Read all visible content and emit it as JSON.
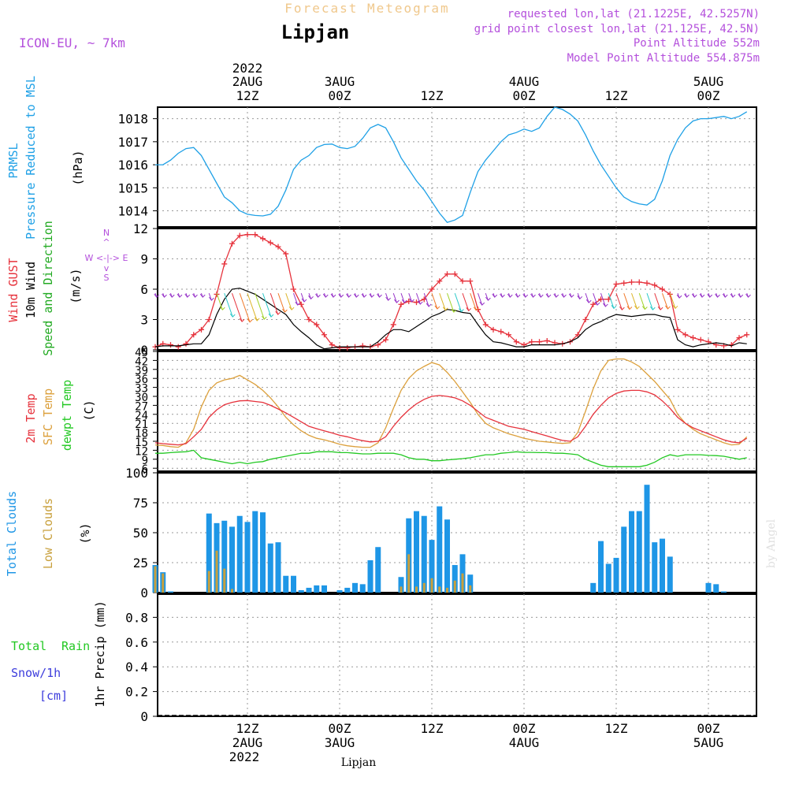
{
  "header": {
    "title": "Forecast Meteogram",
    "location": "Lipjan",
    "model": "ICON-EU, ~ 7km",
    "requested": "requested lon,lat (21.1225E, 42.5257N)",
    "gridpoint": "grid point closest lon,lat (21.125E, 42.5N)",
    "point_alt": "Point Altitude 552m",
    "model_alt": "Model Point Altitude 554.875m",
    "footer_label": "Lipjan",
    "watermark": "by Angel"
  },
  "time_axis": {
    "top_year": "2022",
    "bottom_year": "2022",
    "ticks": [
      {
        "hour": 12,
        "top1": "2AUG",
        "top2": "12Z",
        "bot1": "12Z",
        "bot2": "2AUG"
      },
      {
        "hour": 24,
        "top1": "3AUG",
        "top2": "00Z",
        "bot1": "00Z",
        "bot2": "3AUG"
      },
      {
        "hour": 36,
        "top1": "",
        "top2": "12Z",
        "bot1": "12Z",
        "bot2": ""
      },
      {
        "hour": 48,
        "top1": "4AUG",
        "top2": "00Z",
        "bot1": "00Z",
        "bot2": "4AUG"
      },
      {
        "hour": 60,
        "top1": "",
        "top2": "12Z",
        "bot1": "12Z",
        "bot2": ""
      },
      {
        "hour": 72,
        "top1": "5AUG",
        "top2": "00Z",
        "bot1": "00Z",
        "bot2": "5AUG"
      }
    ]
  },
  "panels": {
    "pressure": {
      "labels": [
        "PRMSL",
        "Pressure Reduced to MSL"
      ],
      "unit": "(hPa)",
      "ticks": [
        "1014",
        "1015",
        "1016",
        "1017",
        "1018"
      ]
    },
    "wind": {
      "labels": [
        "Wind GUST",
        "10m Wind",
        "Speed and Direction"
      ],
      "unit": "(m/s)",
      "ticks": [
        "0",
        "3",
        "6",
        "9",
        "12"
      ],
      "compass_n": "N",
      "compass_s": "S",
      "compass_ew": "W <-|-> E",
      "compass_ns1": "^",
      "compass_ns2": "|",
      "compass_ns3": "v"
    },
    "temp": {
      "labels": [
        "2m Temp",
        "SFC Temp",
        "dewpt Temp"
      ],
      "unit": "(C)",
      "ticks": [
        "6",
        "9",
        "12",
        "15",
        "18",
        "21",
        "24",
        "27",
        "30",
        "33",
        "36",
        "39",
        "42",
        "45"
      ]
    },
    "clouds": {
      "labels": [
        "Total Clouds",
        "Low Clouds"
      ],
      "unit": "(%)",
      "ticks": [
        "0",
        "25",
        "50",
        "75",
        "100"
      ]
    },
    "precip": {
      "labels": [
        "Total Rain",
        "Snow/1h",
        "[cm]"
      ],
      "label_total": "Total",
      "label_rain": "Rain",
      "axis_label": "1hr Precip (mm)",
      "ticks": [
        "0",
        "0.2",
        "0.4",
        "0.6",
        "0.8"
      ]
    }
  },
  "colors": {
    "pressure": "#1ea0e6",
    "gust": "#e6323c",
    "wind": "#000000",
    "wind_label": "#22aa22",
    "t2m": "#e6323c",
    "sfc": "#dca03c",
    "dew": "#22c822",
    "total_clouds": "#1e96e6",
    "low_clouds": "#c8a03c",
    "model_text": "#b450dc",
    "title_text": "#f0c88c",
    "rain": "#22c822",
    "snow": "#3c3cdc",
    "direction_arrow": "#9632c8"
  },
  "chart_data": [
    {
      "type": "line",
      "title": "PRMSL",
      "ylabel": "(hPa)",
      "ylim": [
        1013.3,
        1018.5
      ],
      "x_unit": "hours from 2AUG 00Z",
      "x": [
        0,
        1,
        2,
        3,
        4,
        5,
        6,
        7,
        8,
        9,
        10,
        11,
        12,
        13,
        14,
        15,
        16,
        17,
        18,
        19,
        20,
        21,
        22,
        23,
        24,
        25,
        26,
        27,
        28,
        29,
        30,
        31,
        32,
        33,
        34,
        35,
        36,
        37,
        38,
        39,
        40,
        41,
        42,
        43,
        44,
        45,
        46,
        47,
        48,
        49,
        50,
        51,
        52,
        53,
        54,
        55,
        56,
        57,
        58,
        59,
        60,
        61,
        62,
        63,
        64,
        65,
        66,
        67,
        68,
        69,
        70,
        71,
        72,
        73,
        74,
        75,
        76,
        77
      ],
      "series": [
        {
          "name": "PRMSL",
          "values": [
            1016.0,
            1016.0,
            1016.2,
            1016.5,
            1016.7,
            1016.75,
            1016.4,
            1015.8,
            1015.2,
            1014.6,
            1014.35,
            1014.0,
            1013.85,
            1013.8,
            1013.78,
            1013.85,
            1014.2,
            1014.9,
            1015.8,
            1016.2,
            1016.4,
            1016.75,
            1016.88,
            1016.9,
            1016.75,
            1016.7,
            1016.8,
            1017.15,
            1017.6,
            1017.75,
            1017.6,
            1017.0,
            1016.3,
            1015.8,
            1015.3,
            1014.9,
            1014.4,
            1013.9,
            1013.5,
            1013.6,
            1013.8,
            1014.8,
            1015.7,
            1016.2,
            1016.6,
            1017.0,
            1017.3,
            1017.4,
            1017.55,
            1017.45,
            1017.6,
            1018.1,
            1018.5,
            1018.4,
            1018.2,
            1017.9,
            1017.3,
            1016.6,
            1016.0,
            1015.5,
            1015.0,
            1014.6,
            1014.4,
            1014.3,
            1014.25,
            1014.5,
            1015.3,
            1016.4,
            1017.1,
            1017.6,
            1017.9,
            1018.0,
            1018.0,
            1018.05,
            1018.1,
            1018.0,
            1018.1,
            1018.3
          ]
        }
      ]
    },
    {
      "type": "line",
      "title": "Wind",
      "ylabel": "(m/s)",
      "ylim": [
        0,
        12
      ],
      "x_unit": "hours from 2AUG 00Z",
      "x": [
        0,
        1,
        2,
        3,
        4,
        5,
        6,
        7,
        8,
        9,
        10,
        11,
        12,
        13,
        14,
        15,
        16,
        17,
        18,
        19,
        20,
        21,
        22,
        23,
        24,
        25,
        26,
        27,
        28,
        29,
        30,
        31,
        32,
        33,
        34,
        35,
        36,
        37,
        38,
        39,
        40,
        41,
        42,
        43,
        44,
        45,
        46,
        47,
        48,
        49,
        50,
        51,
        52,
        53,
        54,
        55,
        56,
        57,
        58,
        59,
        60,
        61,
        62,
        63,
        64,
        65,
        66,
        67,
        68,
        69,
        70,
        71,
        72,
        73,
        74,
        75,
        76,
        77
      ],
      "series": [
        {
          "name": "Wind GUST",
          "values": [
            0.3,
            0.6,
            0.5,
            0.3,
            0.6,
            1.5,
            2.0,
            3.0,
            5.5,
            8.5,
            10.5,
            11.3,
            11.4,
            11.4,
            11.0,
            10.6,
            10.2,
            9.5,
            6.0,
            4.5,
            3.0,
            2.5,
            1.5,
            0.5,
            0.2,
            0.2,
            0.3,
            0.4,
            0.3,
            0.5,
            1.0,
            2.5,
            4.5,
            4.8,
            4.7,
            5.0,
            6.0,
            6.8,
            7.5,
            7.5,
            6.8,
            6.8,
            4.0,
            2.5,
            2.0,
            1.8,
            1.5,
            0.8,
            0.5,
            0.8,
            0.8,
            0.9,
            0.7,
            0.6,
            0.8,
            1.5,
            3.0,
            4.5,
            5.0,
            5.0,
            6.5,
            6.6,
            6.7,
            6.7,
            6.6,
            6.4,
            6.0,
            5.5,
            2.0,
            1.5,
            1.2,
            1.0,
            0.8,
            0.5,
            0.4,
            0.5,
            1.2,
            1.5
          ]
        },
        {
          "name": "10m Wind",
          "values": [
            0.3,
            0.4,
            0.4,
            0.4,
            0.5,
            0.6,
            0.6,
            1.5,
            3.5,
            5.0,
            6.0,
            6.1,
            5.8,
            5.5,
            5.0,
            4.5,
            4.0,
            3.5,
            2.5,
            1.8,
            1.2,
            0.5,
            0.1,
            0.2,
            0.3,
            0.3,
            0.3,
            0.3,
            0.3,
            0.8,
            1.5,
            2.0,
            2.0,
            1.8,
            2.3,
            2.8,
            3.3,
            3.6,
            4.0,
            3.9,
            3.7,
            3.6,
            2.5,
            1.5,
            0.8,
            0.7,
            0.5,
            0.3,
            0.3,
            0.5,
            0.5,
            0.5,
            0.5,
            0.6,
            0.8,
            1.2,
            2.0,
            2.5,
            2.8,
            3.2,
            3.5,
            3.4,
            3.3,
            3.4,
            3.5,
            3.5,
            3.3,
            3.2,
            1.0,
            0.5,
            0.3,
            0.5,
            0.6,
            0.7,
            0.6,
            0.4,
            0.7,
            0.6
          ]
        }
      ]
    },
    {
      "type": "line",
      "title": "Temperature",
      "ylabel": "(C)",
      "ylim": [
        5,
        45
      ],
      "x_unit": "hours from 2AUG 00Z",
      "x": [
        0,
        1,
        2,
        3,
        4,
        5,
        6,
        7,
        8,
        9,
        10,
        11,
        12,
        13,
        14,
        15,
        16,
        17,
        18,
        19,
        20,
        21,
        22,
        23,
        24,
        25,
        26,
        27,
        28,
        29,
        30,
        31,
        32,
        33,
        34,
        35,
        36,
        37,
        38,
        39,
        40,
        41,
        42,
        43,
        44,
        45,
        46,
        47,
        48,
        49,
        50,
        51,
        52,
        53,
        54,
        55,
        56,
        57,
        58,
        59,
        60,
        61,
        62,
        63,
        64,
        65,
        66,
        67,
        68,
        69,
        70,
        71,
        72,
        73,
        74,
        75,
        76,
        77
      ],
      "series": [
        {
          "name": "2m Temp",
          "values": [
            14.5,
            14.2,
            14.0,
            13.8,
            14.2,
            16.5,
            19.0,
            23.0,
            25.5,
            27.2,
            28.0,
            28.5,
            28.6,
            28.3,
            28.0,
            27.0,
            25.8,
            24.5,
            23.0,
            21.5,
            20.0,
            19.2,
            18.5,
            17.8,
            17.0,
            16.5,
            15.8,
            15.2,
            14.8,
            15.0,
            16.5,
            20.0,
            23.0,
            25.5,
            27.5,
            29.0,
            30.0,
            30.3,
            30.0,
            29.5,
            28.5,
            27.0,
            25.0,
            23.0,
            22.0,
            21.0,
            20.0,
            19.5,
            19.0,
            18.2,
            17.5,
            16.8,
            16.0,
            15.3,
            15.0,
            16.5,
            20.0,
            24.0,
            27.0,
            29.5,
            31.0,
            31.8,
            32.0,
            32.0,
            31.5,
            30.5,
            28.5,
            26.0,
            23.0,
            21.0,
            19.5,
            18.5,
            17.5,
            16.5,
            15.5,
            14.8,
            14.5,
            16.0
          ]
        },
        {
          "name": "SFC Temp",
          "values": [
            13.8,
            13.6,
            13.2,
            13.0,
            14.5,
            19.0,
            26.5,
            32.0,
            34.5,
            35.5,
            36.0,
            37.0,
            35.5,
            34.0,
            32.0,
            29.5,
            26.5,
            23.0,
            20.5,
            18.5,
            17.0,
            16.0,
            15.5,
            14.8,
            14.0,
            13.5,
            13.2,
            13.0,
            13.0,
            14.5,
            19.5,
            26.0,
            32.0,
            36.0,
            38.5,
            40.0,
            41.3,
            40.5,
            38.0,
            35.0,
            31.5,
            28.0,
            24.0,
            21.0,
            19.5,
            18.5,
            17.5,
            16.8,
            16.0,
            15.5,
            15.0,
            14.8,
            14.5,
            14.3,
            14.5,
            18.0,
            25.0,
            32.5,
            38.5,
            42.0,
            42.5,
            42.5,
            41.5,
            40.0,
            37.5,
            35.0,
            32.0,
            29.0,
            24.0,
            21.0,
            19.0,
            17.5,
            16.5,
            15.5,
            14.5,
            13.8,
            14.0,
            16.5
          ]
        },
        {
          "name": "dewpt Temp",
          "values": [
            11.0,
            11.0,
            11.2,
            11.4,
            11.5,
            12.0,
            9.5,
            9.0,
            8.5,
            8.0,
            7.5,
            8.0,
            7.5,
            8.0,
            8.2,
            9.0,
            9.5,
            10.0,
            10.5,
            11.0,
            11.0,
            11.5,
            11.5,
            11.5,
            11.2,
            11.2,
            11.0,
            10.8,
            10.8,
            11.0,
            11.0,
            11.0,
            10.5,
            9.5,
            9.0,
            9.0,
            8.5,
            8.5,
            8.8,
            9.0,
            9.2,
            9.5,
            10.0,
            10.5,
            10.5,
            11.0,
            11.2,
            11.5,
            11.3,
            11.3,
            11.2,
            11.2,
            11.0,
            11.0,
            10.8,
            10.5,
            9.0,
            8.0,
            7.0,
            6.5,
            6.5,
            6.5,
            6.5,
            6.5,
            7.0,
            8.0,
            9.5,
            10.5,
            10.0,
            10.5,
            10.5,
            10.5,
            10.3,
            10.2,
            10.0,
            9.5,
            9.0,
            9.5
          ]
        }
      ]
    },
    {
      "type": "bar",
      "title": "Clouds",
      "ylabel": "(%)",
      "ylim": [
        0,
        100
      ],
      "x_unit": "hours from 2AUG 00Z",
      "x": [
        0,
        1,
        2,
        3,
        4,
        5,
        6,
        7,
        8,
        9,
        10,
        11,
        12,
        13,
        14,
        15,
        16,
        17,
        18,
        19,
        20,
        21,
        22,
        23,
        24,
        25,
        26,
        27,
        28,
        29,
        30,
        31,
        32,
        33,
        34,
        35,
        36,
        37,
        38,
        39,
        40,
        41,
        42,
        43,
        44,
        45,
        46,
        47,
        48,
        49,
        50,
        51,
        52,
        53,
        54,
        55,
        56,
        57,
        58,
        59,
        60,
        61,
        62,
        63,
        64,
        65,
        66,
        67,
        68,
        69,
        70,
        71,
        72,
        73,
        74,
        75,
        76,
        77
      ],
      "series": [
        {
          "name": "Total Clouds",
          "values": [
            23,
            17,
            1,
            0,
            0,
            0,
            0,
            66,
            58,
            60,
            55,
            64,
            59,
            68,
            67,
            41,
            42,
            14,
            14,
            2,
            4,
            6,
            6,
            0,
            2,
            4,
            8,
            7,
            27,
            38,
            0,
            0,
            13,
            62,
            68,
            64,
            44,
            72,
            61,
            23,
            32,
            15,
            0,
            0,
            0,
            0,
            0,
            0,
            0,
            0,
            0,
            0,
            0,
            0,
            0,
            0,
            0,
            8,
            43,
            24,
            29,
            55,
            68,
            68,
            90,
            42,
            45,
            30,
            0,
            0,
            0,
            0,
            8,
            7,
            1,
            0,
            0,
            0
          ]
        },
        {
          "name": "Low Clouds",
          "values": [
            22,
            16,
            0,
            0,
            0,
            0,
            0,
            18,
            35,
            20,
            3,
            0,
            0,
            0,
            0,
            0,
            0,
            0,
            0,
            0,
            0,
            0,
            0,
            0,
            0,
            0,
            0,
            0,
            0,
            0,
            0,
            0,
            5,
            32,
            5,
            8,
            12,
            5,
            4,
            10,
            16,
            6,
            0,
            0,
            0,
            0,
            0,
            0,
            0,
            0,
            0,
            0,
            0,
            0,
            0,
            0,
            0,
            0,
            0,
            0,
            0,
            0,
            0,
            0,
            0,
            0,
            0,
            0,
            0,
            0,
            0,
            0,
            0,
            0,
            0,
            0,
            0,
            0
          ]
        }
      ]
    },
    {
      "type": "bar",
      "title": "1hr Precip",
      "ylabel": "1hr Precip (mm)",
      "ylim": [
        0,
        1
      ],
      "x_unit": "hours from 2AUG 00Z",
      "series": [
        {
          "name": "Total Rain",
          "values": []
        },
        {
          "name": "Snow/1h",
          "values": []
        }
      ]
    }
  ]
}
